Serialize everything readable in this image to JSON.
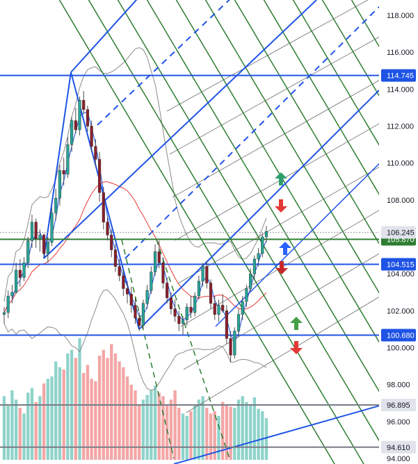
{
  "chart_data": {
    "type": "candlestick",
    "title": "",
    "xlabel": "",
    "ylabel": "",
    "ylim": [
      93.9,
      118.6
    ],
    "y_ticks": [
      "94.000",
      "96.000",
      "98.000",
      "100.000",
      "102.000",
      "104.000",
      "106.000",
      "108.000",
      "110.000",
      "112.000",
      "114.000",
      "116.000",
      "118.000"
    ],
    "grid": false,
    "horizontal_levels": [
      {
        "label": "114.745",
        "value": 114.745,
        "color": "#1e53e5",
        "tag_bg": "#1e53e5",
        "tag_fg": "#ffffff"
      },
      {
        "label": "104.515",
        "value": 104.515,
        "color": "#1e53e5",
        "tag_bg": "#1e53e5",
        "tag_fg": "#ffffff"
      },
      {
        "label": "100.680",
        "value": 100.68,
        "color": "#1e53e5",
        "tag_bg": "#1e53e5",
        "tag_fg": "#ffffff"
      },
      {
        "label": "105.870",
        "value": 105.87,
        "color": "#2e7d32",
        "tag_bg": "#2e7d32",
        "tag_fg": "#ffffff"
      },
      {
        "label": "106.245",
        "value": 106.245,
        "color": "#9e9e9e",
        "tag_bg": "#e0e3eb",
        "tag_fg": "#131722",
        "dotted": true
      },
      {
        "label": "96.895",
        "value": 96.895,
        "color": "#787b86",
        "tag_bg": "#e0e3eb",
        "tag_fg": "#131722"
      },
      {
        "label": "94.610",
        "value": 94.61,
        "color": "#787b86",
        "tag_bg": "#e0e3eb",
        "tag_fg": "#131722"
      }
    ],
    "candles": [
      [
        101.8,
        102.2,
        101.3,
        101.9
      ],
      [
        101.9,
        103.1,
        101.6,
        102.8
      ],
      [
        102.8,
        103.4,
        102.4,
        103.0
      ],
      [
        103.0,
        104.6,
        102.9,
        104.2
      ],
      [
        104.2,
        104.8,
        103.3,
        103.8
      ],
      [
        103.8,
        104.9,
        103.6,
        104.6
      ],
      [
        104.6,
        106.0,
        104.3,
        105.8
      ],
      [
        105.8,
        107.2,
        105.4,
        106.8
      ],
      [
        106.8,
        107.0,
        105.4,
        105.9
      ],
      [
        105.9,
        106.4,
        105.2,
        106.1
      ],
      [
        106.1,
        106.2,
        104.9,
        105.1
      ],
      [
        105.1,
        106.0,
        104.6,
        105.7
      ],
      [
        105.7,
        107.6,
        105.5,
        107.3
      ],
      [
        107.3,
        108.6,
        106.9,
        108.1
      ],
      [
        108.1,
        109.9,
        107.7,
        109.6
      ],
      [
        109.6,
        110.3,
        108.8,
        109.4
      ],
      [
        109.4,
        111.4,
        109.2,
        111.0
      ],
      [
        111.0,
        112.5,
        110.6,
        112.3
      ],
      [
        112.3,
        113.0,
        111.6,
        111.8
      ],
      [
        111.8,
        113.6,
        111.5,
        113.4
      ],
      [
        113.4,
        113.9,
        112.7,
        112.9
      ],
      [
        112.9,
        113.1,
        111.7,
        112.0
      ],
      [
        112.0,
        112.3,
        110.6,
        110.9
      ],
      [
        110.9,
        111.3,
        109.8,
        110.2
      ],
      [
        110.2,
        110.6,
        107.9,
        108.4
      ],
      [
        108.4,
        108.7,
        106.4,
        106.8
      ],
      [
        106.8,
        107.1,
        105.8,
        106.1
      ],
      [
        106.1,
        106.4,
        104.9,
        105.3
      ],
      [
        105.3,
        105.6,
        104.1,
        104.4
      ],
      [
        104.4,
        104.8,
        103.6,
        103.9
      ],
      [
        103.9,
        104.2,
        102.8,
        103.2
      ],
      [
        103.2,
        103.6,
        102.4,
        102.9
      ],
      [
        102.9,
        103.3,
        101.9,
        102.3
      ],
      [
        102.3,
        102.7,
        101.3,
        101.6
      ],
      [
        101.6,
        101.9,
        100.9,
        101.2
      ],
      [
        101.2,
        102.6,
        101.0,
        102.4
      ],
      [
        102.4,
        103.4,
        102.1,
        103.1
      ],
      [
        103.1,
        104.4,
        102.9,
        104.1
      ],
      [
        104.1,
        105.6,
        103.9,
        105.2
      ],
      [
        105.2,
        105.8,
        104.3,
        104.6
      ],
      [
        104.6,
        104.9,
        103.2,
        103.5
      ],
      [
        103.5,
        103.8,
        102.4,
        102.7
      ],
      [
        102.7,
        103.0,
        101.8,
        102.1
      ],
      [
        102.1,
        102.6,
        101.4,
        101.7
      ],
      [
        101.7,
        102.0,
        100.9,
        101.3
      ],
      [
        101.3,
        101.7,
        100.7,
        101.5
      ],
      [
        101.5,
        102.4,
        101.2,
        102.2
      ],
      [
        102.2,
        102.8,
        101.6,
        101.9
      ],
      [
        101.9,
        103.0,
        101.7,
        102.8
      ],
      [
        102.8,
        103.9,
        102.6,
        103.6
      ],
      [
        103.6,
        104.6,
        103.3,
        104.4
      ],
      [
        104.4,
        104.7,
        103.2,
        103.5
      ],
      [
        103.5,
        103.7,
        102.1,
        102.4
      ],
      [
        102.4,
        102.8,
        101.5,
        101.8
      ],
      [
        101.8,
        102.6,
        101.4,
        102.3
      ],
      [
        102.3,
        102.9,
        101.9,
        102.0
      ],
      [
        102.0,
        102.3,
        100.2,
        100.5
      ],
      [
        100.5,
        100.9,
        99.2,
        99.6
      ],
      [
        99.6,
        101.1,
        99.4,
        100.9
      ],
      [
        100.9,
        102.1,
        100.6,
        101.8
      ],
      [
        101.8,
        102.8,
        101.5,
        102.5
      ],
      [
        102.5,
        103.4,
        102.2,
        103.2
      ],
      [
        103.2,
        104.3,
        103.0,
        104.0
      ],
      [
        104.0,
        105.0,
        103.7,
        104.8
      ],
      [
        104.8,
        105.4,
        104.4,
        105.1
      ],
      [
        105.1,
        106.2,
        104.9,
        106.0
      ],
      [
        106.0,
        106.6,
        105.7,
        106.3
      ]
    ],
    "volume": [
      55,
      48,
      60,
      52,
      45,
      40,
      58,
      62,
      50,
      55,
      66,
      70,
      72,
      85,
      80,
      78,
      92,
      95,
      88,
      105,
      75,
      82,
      70,
      68,
      90,
      95,
      88,
      100,
      92,
      85,
      80,
      72,
      65,
      60,
      48,
      52,
      56,
      60,
      64,
      58,
      55,
      48,
      52,
      60,
      45,
      40,
      38,
      42,
      48,
      52,
      55,
      45,
      40,
      42,
      38,
      50,
      48,
      46,
      45,
      52,
      55,
      50,
      48,
      54,
      44,
      42,
      36
    ]
  }
}
